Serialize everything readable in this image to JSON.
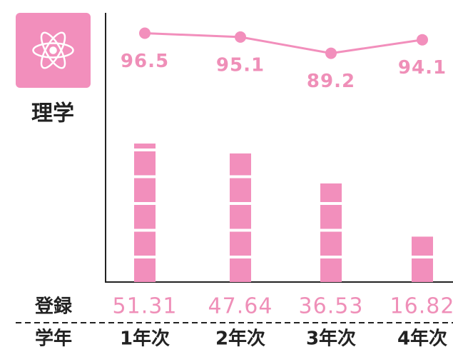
{
  "chart_data": {
    "type": "bar",
    "title": "理学",
    "x_label": "学年",
    "categories": [
      "1年次",
      "2年次",
      "3年次",
      "4年次"
    ],
    "series": [
      {
        "name": "登録",
        "type": "bar",
        "color": "#f28fbc",
        "values": [
          51.31,
          47.64,
          36.53,
          16.82
        ]
      },
      {
        "type": "line",
        "axis": "y2",
        "color": "#f28fbc",
        "values": [
          96.5,
          95.1,
          89.2,
          94.1
        ]
      }
    ],
    "ylim": [
      0,
      100
    ],
    "y2lim": [
      80,
      100
    ]
  }
}
